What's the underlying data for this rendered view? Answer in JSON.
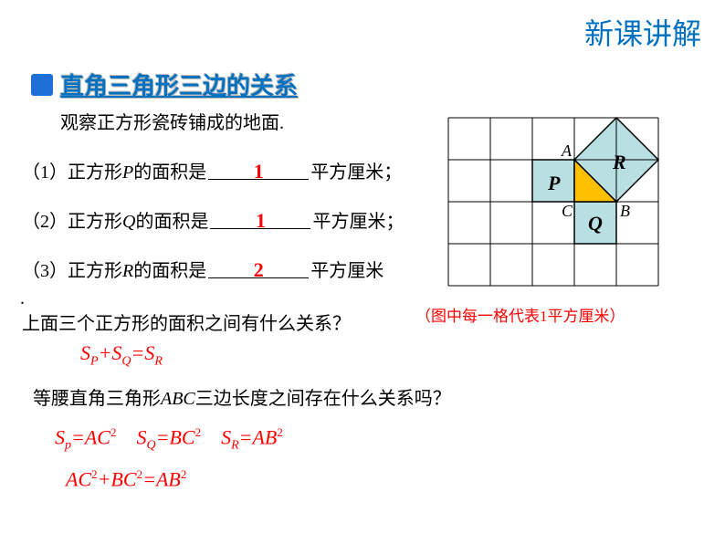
{
  "header": {
    "title": "新课讲解"
  },
  "section": {
    "title": "直角三角形三边的关系"
  },
  "intro": "观察正方形瓷砖铺成的地面.",
  "questions": {
    "q1_prefix": "（1）正方形",
    "q1_var": "P",
    "q1_mid": "的面积是",
    "q1_answer": "1",
    "q1_suffix": "平方厘米；",
    "q2_prefix": "（2）正方形",
    "q2_var": "Q",
    "q2_mid": "的面积是",
    "q2_answer": "1",
    "q2_suffix": "平方厘米；",
    "q3_prefix": "（3）正方形",
    "q3_var": "R",
    "q3_mid": "的面积是",
    "q3_answer": "2",
    "q3_suffix": "平方厘米"
  },
  "dot": ".",
  "relation_question": "上面三个正方形的面积之间有什么关系？",
  "caption": {
    "prefix": "（图中每一格代表",
    "num": "1",
    "suffix": "平方厘米）"
  },
  "formula1": {
    "s1": "S",
    "sub1": "P",
    "plus": "+",
    "s2": "S",
    "sub2": "Q",
    "eq": "=",
    "s3": "S",
    "sub3": "R"
  },
  "relation_question2_prefix": "等腰直角三角形",
  "relation_question2_var": "ABC",
  "relation_question2_suffix": "三边长度之间存在什么关系吗？",
  "formula2": {
    "t1": "S",
    "sub1": "p",
    "eq1": "=AC",
    "sup1": "2",
    "sp1": "   ",
    "t2": "S",
    "sub2": "Q",
    "eq2": "=BC",
    "sup2": "2",
    "sp2": "   ",
    "t3": "S",
    "sub3": "R",
    "eq3": "=AB",
    "sup3": "2"
  },
  "formula3": {
    "a": "AC",
    "sup1": "2",
    "plus": "+",
    "b": "BC",
    "sup2": "2",
    "eq": "=",
    "c": "AB",
    "sup3": "2"
  },
  "diagram": {
    "grid_cols": 5,
    "grid_rows": 4,
    "cell_size": 46,
    "stroke": "#000000",
    "square_fill": "#b8e0e3",
    "triangle_fill": "#ffc000",
    "labels": {
      "A": "A",
      "B": "B",
      "C": "C",
      "P": "P",
      "Q": "Q",
      "R": "R"
    },
    "label_font": "italic bold 20px Times New Roman"
  }
}
